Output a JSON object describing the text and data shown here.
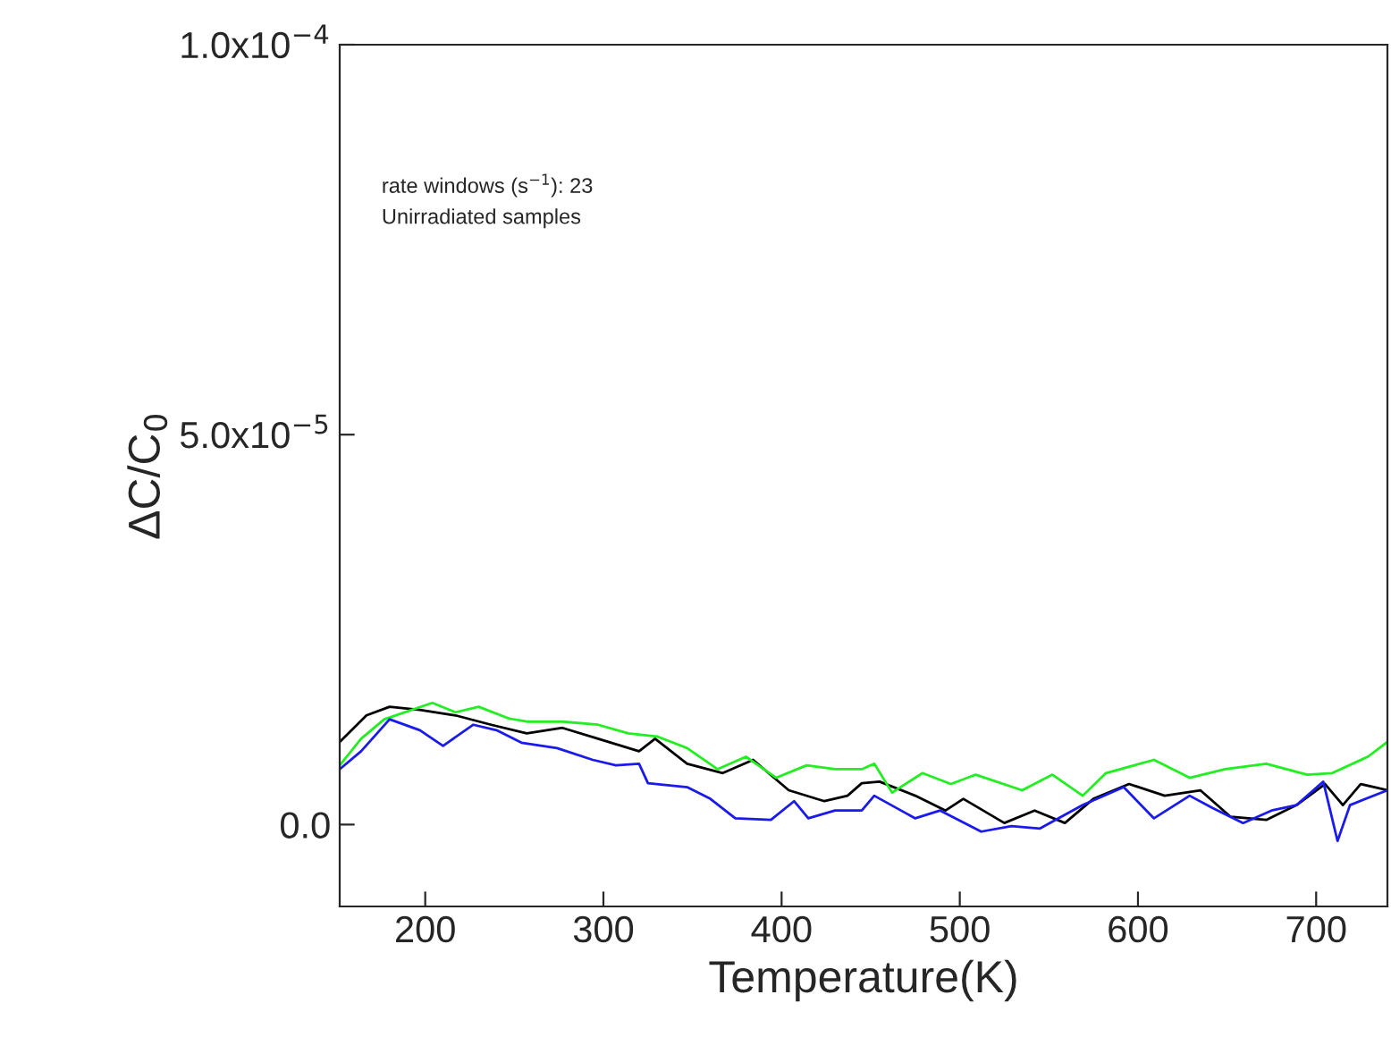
{
  "chart_data": {
    "type": "line",
    "xlabel": "Temperature(K)",
    "ylabel": "ΔC/C$_{0}$",
    "annotations": [
      "rate windows (s$^{−1}$): 23",
      "Unirradiated samples"
    ],
    "xlim": [
      152,
      740
    ],
    "xticks": [
      200,
      300,
      400,
      500,
      600,
      700
    ],
    "ylim": [
      -1.05e-05,
      0.0001
    ],
    "yticks": [
      {
        "value": 0,
        "label": "0.0"
      },
      {
        "value": 5e-05,
        "label": "5.0x10$^{−5}$"
      },
      {
        "value": 0.0001,
        "label": "1.0x10$^{−4}$"
      }
    ],
    "grid": false,
    "legend": false,
    "marker": "none",
    "line_style": "solid",
    "tick_labels": "xy",
    "series": [
      {
        "color": "#000000",
        "x": [
          152,
          167,
          180,
          197,
          217,
          237,
          257,
          277,
          297,
          320,
          329,
          347,
          367,
          384,
          404,
          424,
          437,
          445,
          455,
          475,
          492,
          502,
          525,
          542,
          559,
          575,
          595,
          615,
          635,
          652,
          672,
          689,
          705,
          715,
          725,
          740
        ],
        "values": [
          1.06e-05,
          1.4e-05,
          1.51e-05,
          1.47e-05,
          1.4e-05,
          1.28e-05,
          1.17e-05,
          1.24e-05,
          1.1e-05,
          9.4e-06,
          1.1e-05,
          7.8e-06,
          6.6e-06,
          8.3e-06,
          4.4e-06,
          3e-06,
          3.7e-06,
          5.3e-06,
          5.5e-06,
          3.7e-06,
          1.8e-06,
          3.3e-06,
          2e-07,
          1.8e-06,
          2e-07,
          3.3e-06,
          5.2e-06,
          3.7e-06,
          4.4e-06,
          1e-06,
          6e-07,
          2.5e-06,
          5.2e-06,
          2.5e-06,
          5.2e-06,
          4.4e-06
        ]
      },
      {
        "color": "#22ee22",
        "x": [
          152,
          164,
          177,
          204,
          217,
          230,
          247,
          257,
          277,
          297,
          314,
          330,
          347,
          364,
          380,
          397,
          414,
          430,
          445,
          452,
          462,
          479,
          495,
          509,
          535,
          552,
          569,
          582,
          609,
          629,
          649,
          672,
          695,
          709,
          729,
          740
        ],
        "values": [
          7.6e-06,
          1.1e-05,
          1.35e-05,
          1.56e-05,
          1.44e-05,
          1.51e-05,
          1.36e-05,
          1.32e-05,
          1.32e-05,
          1.28e-05,
          1.17e-05,
          1.13e-05,
          9.8e-06,
          7.1e-06,
          8.7e-06,
          6e-06,
          7.6e-06,
          7.1e-06,
          7.1e-06,
          7.8e-06,
          4.1e-06,
          6.6e-06,
          5.2e-06,
          6.4e-06,
          4.4e-06,
          6.4e-06,
          3.7e-06,
          6.6e-06,
          8.3e-06,
          6e-06,
          7.1e-06,
          7.8e-06,
          6.4e-06,
          6.6e-06,
          8.7e-06,
          1.06e-05
        ]
      },
      {
        "color": "#1a1aee",
        "x": [
          152,
          164,
          180,
          197,
          210,
          227,
          240,
          254,
          274,
          294,
          307,
          320,
          325,
          347,
          360,
          374,
          394,
          407,
          415,
          430,
          445,
          452,
          475,
          489,
          512,
          529,
          545,
          569,
          592,
          609,
          629,
          642,
          659,
          675,
          689,
          704,
          712,
          719,
          740
        ],
        "values": [
          7.1e-06,
          9.4e-06,
          1.35e-05,
          1.21e-05,
          1.01e-05,
          1.28e-05,
          1.21e-05,
          1.05e-05,
          9.8e-06,
          8.3e-06,
          7.6e-06,
          7.8e-06,
          5.3e-06,
          4.8e-06,
          3.3e-06,
          8e-07,
          6e-07,
          3e-06,
          8e-07,
          1.8e-06,
          1.8e-06,
          3.7e-06,
          8e-07,
          1.8e-06,
          -9e-07,
          -2e-07,
          -5e-07,
          2.5e-06,
          4.8e-06,
          8e-07,
          3.7e-06,
          2.1e-06,
          2e-07,
          1.8e-06,
          2.5e-06,
          5.5e-06,
          -2.1e-06,
          2.5e-06,
          4.4e-06
        ]
      }
    ]
  }
}
